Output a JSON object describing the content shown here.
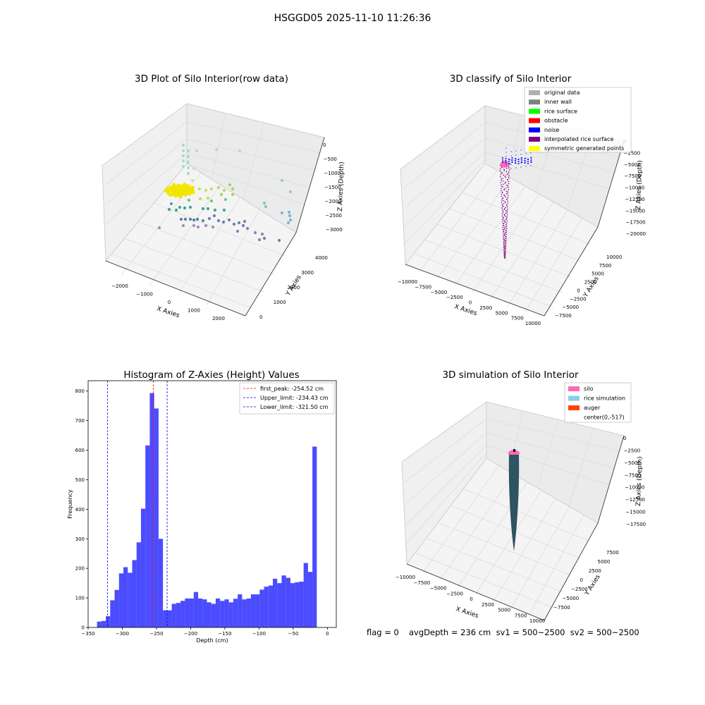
{
  "suptitle": "HSGGD05 2025-11-10 11:26:36",
  "panels": {
    "raw": {
      "title": "3D Plot of Silo Interior(row data)",
      "xlabel": "X Axies",
      "ylabel": "Y Axies",
      "zlabel": "Z Axies (Depth)",
      "xticks": [
        "−2000",
        "−1000",
        "0",
        "1000",
        "2000"
      ],
      "yticks": [
        "0",
        "1000",
        "2000",
        "3000",
        "4000"
      ],
      "zticks": [
        "0",
        "−500",
        "−1000",
        "−1500",
        "−2000",
        "−2500",
        "−3000"
      ]
    },
    "classify": {
      "title": "3D classify of Silo Interior",
      "xlabel": "X Axies",
      "ylabel": "Y Axies",
      "zlabel": "Z Axies (Depth)",
      "xticks": [
        "−10000",
        "−7500",
        "−5000",
        "−2500",
        "0",
        "2500",
        "5000",
        "7500",
        "10000"
      ],
      "yticks": [
        "−7500",
        "−5000",
        "−2500",
        "0",
        "2500",
        "5000",
        "7500",
        "10000"
      ],
      "zticks": [
        "0",
        "−2500",
        "−5000",
        "−7500",
        "−10000",
        "−12500",
        "−15000",
        "−17500",
        "−20000"
      ],
      "legend": [
        {
          "label": "original data",
          "color": "#b0b0b0"
        },
        {
          "label": "inner wall",
          "color": "#808080"
        },
        {
          "label": "rice surface",
          "color": "#00ff00"
        },
        {
          "label": "obstacle",
          "color": "#ff0000"
        },
        {
          "label": "noise",
          "color": "#0000ff"
        },
        {
          "label": "interpolated rice surface",
          "color": "#800080"
        },
        {
          "label": "symmetric generated points",
          "color": "#ffff00"
        }
      ]
    },
    "simulation": {
      "title": "3D simulation of Silo Interior",
      "xlabel": "X Axies",
      "ylabel": "Y Axies",
      "zlabel": "Z Axies (Depth)",
      "xticks": [
        "−10000",
        "−7500",
        "−5000",
        "−2500",
        "0",
        "2500",
        "5000",
        "7500",
        "10000"
      ],
      "yticks": [
        "−7500",
        "−5000",
        "−2500",
        "0",
        "2500",
        "5000",
        "7500"
      ],
      "zticks": [
        "0",
        "−2500",
        "−5000",
        "−7500",
        "−10000",
        "−12500",
        "−15000",
        "−17500"
      ],
      "legend": [
        {
          "label": "silo",
          "color": "#ff69b4"
        },
        {
          "label": "rice simulation",
          "color": "#87ceeb"
        },
        {
          "label": "auger",
          "color": "#ff4500"
        },
        {
          "label": "center(0,-517)",
          "color": ""
        }
      ]
    }
  },
  "footer": {
    "flag": "flag = 0",
    "avg": "avgDepth = 236 cm  sv1 = 500~2500  sv2 = 500~2500"
  },
  "chart_data": {
    "type": "bar",
    "title": "Histogram of Z-Axies (Height) Values",
    "xlabel": "Depth (cm)",
    "ylabel": "Frequency",
    "xlim": [
      -350,
      13
    ],
    "ylim": [
      0,
      835
    ],
    "xticks": [
      -350,
      -300,
      -250,
      -200,
      -150,
      -100,
      -50,
      0
    ],
    "xtick_labels": [
      "−350",
      "−300",
      "−250",
      "−200",
      "−150",
      "−100",
      "−50",
      "0"
    ],
    "yticks": [
      0,
      100,
      200,
      300,
      400,
      500,
      600,
      700,
      800
    ],
    "bar_color": "#0000ff",
    "bin_width": 6.43,
    "bin_start": -337,
    "values": [
      20,
      22,
      38,
      92,
      127,
      183,
      204,
      185,
      228,
      288,
      402,
      616,
      793,
      741,
      300,
      58,
      58,
      80,
      83,
      90,
      98,
      98,
      120,
      98,
      95,
      85,
      80,
      98,
      90,
      95,
      85,
      97,
      112,
      95,
      98,
      112,
      112,
      128,
      138,
      142,
      165,
      150,
      176,
      168,
      150,
      153,
      155,
      218,
      188,
      612
    ],
    "vlines": [
      {
        "label": "first_peak: -254.52 cm",
        "x": -254.52,
        "color": "#ff0000"
      },
      {
        "label": "Upper_limit: -234.43 cm",
        "x": -234.43,
        "color": "#0000ff"
      },
      {
        "label": "Lower_limit: -321.50 cm",
        "x": -321.5,
        "color": "#0000ff"
      }
    ]
  }
}
